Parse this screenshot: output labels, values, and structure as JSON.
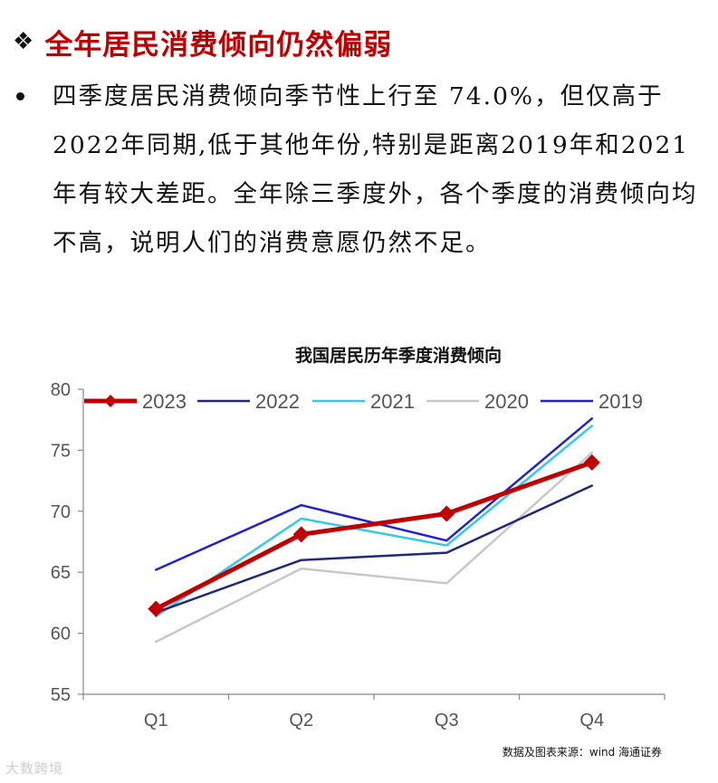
{
  "heading": {
    "bullet_symbol": "❖",
    "title": "全年居民消费倾向仍然偏弱"
  },
  "bullet": {
    "text": "四季度居民消费倾向季节性上行至 74.0%，但仅高于2022年同期,低于其他年份,特别是距离2019年和2021年有较大差距。全年除三季度外，各个季度的消费倾向均不高，说明人们的消费意愿仍然不足。"
  },
  "chart_data": {
    "type": "line",
    "title": "我国居民历年季度消费倾向",
    "categories": [
      "Q1",
      "Q2",
      "Q3",
      "Q4"
    ],
    "ylim": [
      55,
      80
    ],
    "yticks": [
      55,
      60,
      65,
      70,
      75,
      80
    ],
    "grid": false,
    "legend_position": "top",
    "series": [
      {
        "name": "2023",
        "values": [
          62.0,
          68.1,
          69.8,
          74.0
        ],
        "color": "#c00000",
        "markers": "diamond"
      },
      {
        "name": "2022",
        "values": [
          61.7,
          66.0,
          66.6,
          72.1
        ],
        "color": "#1f2a7a"
      },
      {
        "name": "2021",
        "values": [
          61.4,
          69.4,
          67.2,
          77.0
        ],
        "color": "#33c9e8"
      },
      {
        "name": "2020",
        "values": [
          59.3,
          65.3,
          64.1,
          74.8
        ],
        "color": "#c8c8c8"
      },
      {
        "name": "2019",
        "values": [
          65.2,
          70.5,
          67.6,
          77.6
        ],
        "color": "#2222cc"
      }
    ]
  },
  "source": "数据及图表来源：wind 海通证券",
  "watermark": "大数跨境"
}
